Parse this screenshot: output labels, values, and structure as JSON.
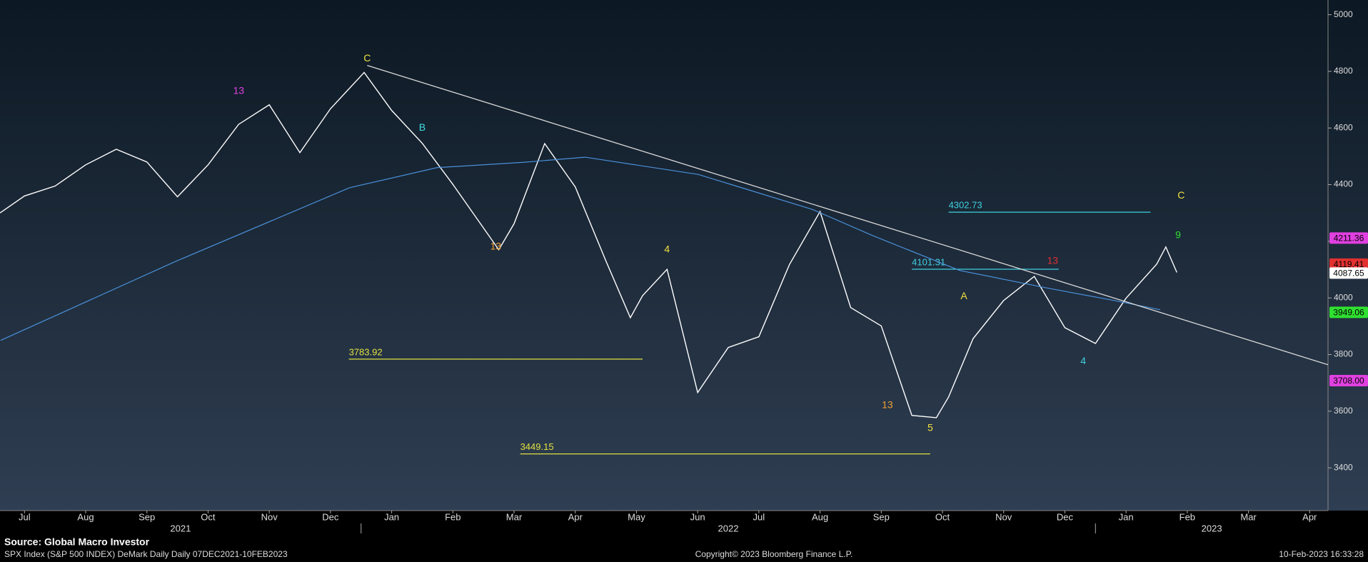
{
  "chart_data": {
    "type": "line",
    "series": [
      {
        "color": "#ffffff",
        "x": [
          0.1,
          0.5,
          1.0,
          1.5,
          2.0,
          2.5,
          3.0,
          3.5,
          4.0,
          4.5,
          5.0,
          5.5,
          6.05,
          6.5,
          7.0,
          7.5,
          8.25,
          8.5,
          9.0,
          9.5,
          10.0,
          10.4,
          10.6,
          11.0,
          11.5,
          12.0,
          12.5,
          13.0,
          13.5,
          14.0,
          14.5,
          15.0,
          15.4,
          15.6,
          16.0,
          16.5,
          17.0,
          17.5,
          18.0,
          18.5,
          19.0,
          19.15,
          19.33
        ],
        "values": [
          4300,
          4360,
          4395,
          4470,
          4525,
          4480,
          4357,
          4470,
          4613,
          4682,
          4513,
          4668,
          4796,
          4662,
          4546,
          4401,
          4170,
          4262,
          4545,
          4392,
          4131,
          3930,
          4008,
          4101,
          3666,
          3825,
          3863,
          4118,
          4305,
          3966,
          3901,
          3585,
          3577,
          3650,
          3856,
          3991,
          4076,
          3895,
          3839,
          3999,
          4119,
          4180,
          4090
        ]
      },
      {
        "color": "#4a90d9",
        "x": [
          0.11,
          2.96,
          5.81,
          7.24,
          8.66,
          9.66,
          11.51,
          13.38,
          14.36,
          15.78,
          17.21,
          18.35,
          19.06
        ],
        "values": [
          3850,
          4128,
          4389,
          4460,
          4479,
          4497,
          4436,
          4312,
          4220,
          4097,
          4035,
          3989,
          3958
        ]
      }
    ],
    "trendline": {
      "x": [
        6.1,
        21.8
      ],
      "values": [
        4821,
        3764
      ],
      "color": "#d8d8d8"
    },
    "levels": [
      {
        "value": 4302.73,
        "start": 15.6,
        "end": 18.9,
        "color": "#3fd0e0"
      },
      {
        "value": 4101.31,
        "start": 15.0,
        "end": 17.4,
        "color": "#3fd0e0"
      },
      {
        "value": 3783.92,
        "start": 5.8,
        "end": 10.6,
        "color": "#e0e040"
      },
      {
        "value": 3449.15,
        "start": 8.6,
        "end": 15.3,
        "color": "#e0e040"
      }
    ],
    "annotations": [
      {
        "text": "C",
        "x": 6.1,
        "y": 4845,
        "color": "#f0e040"
      },
      {
        "text": "13",
        "x": 4.0,
        "y": 4730,
        "color": "#e040e0"
      },
      {
        "text": "13",
        "x": 17.3,
        "y": 4130,
        "color": "#e03030"
      },
      {
        "text": "C",
        "x": 19.4,
        "y": 4360,
        "color": "#f0e040"
      },
      {
        "text": "9",
        "x": 19.35,
        "y": 4220,
        "color": "#30e030"
      },
      {
        "text": "13",
        "x": 14.6,
        "y": 3620,
        "color": "#f0a030"
      },
      {
        "text": "5",
        "x": 15.3,
        "y": 3540,
        "color": "#f0e040"
      },
      {
        "text": "B",
        "x": 7.0,
        "y": 4600,
        "color": "#40e0e0"
      },
      {
        "text": "4",
        "x": 11.0,
        "y": 4170,
        "color": "#f0e040"
      },
      {
        "text": "4",
        "x": 17.8,
        "y": 3775,
        "color": "#40d0e0"
      },
      {
        "text": "A",
        "x": 15.85,
        "y": 4005,
        "color": "#f0e040"
      },
      {
        "text": "13",
        "x": 8.2,
        "y": 4180,
        "color": "#f0a030"
      }
    ],
    "price_tags": [
      {
        "value": 4211.36,
        "color": "#e040e0"
      },
      {
        "value": 4119.41,
        "color": "#e03030"
      },
      {
        "value": 4087.65,
        "color": "#ffffff"
      },
      {
        "value": 3949.06,
        "color": "#30e030"
      },
      {
        "value": 3708,
        "label": "3708.00",
        "color": "#e040e0"
      }
    ],
    "ylim": [
      3249,
      5052
    ],
    "yticks": [
      3400,
      3600,
      3800,
      4000,
      4200,
      4400,
      4600,
      4800,
      5000
    ],
    "xlim": [
      0.1,
      21.8
    ],
    "xticks": [
      {
        "value": 0.5,
        "label": "Jul"
      },
      {
        "value": 1.5,
        "label": "Aug"
      },
      {
        "value": 2.5,
        "label": "Sep"
      },
      {
        "value": 3.5,
        "label": "Oct"
      },
      {
        "value": 4.5,
        "label": "Nov"
      },
      {
        "value": 5.5,
        "label": "Dec"
      },
      {
        "value": 6.5,
        "label": "Jan"
      },
      {
        "value": 7.5,
        "label": "Feb"
      },
      {
        "value": 8.5,
        "label": "Mar"
      },
      {
        "value": 9.5,
        "label": "Apr"
      },
      {
        "value": 10.5,
        "label": "May"
      },
      {
        "value": 11.5,
        "label": "Jun"
      },
      {
        "value": 12.5,
        "label": "Jul"
      },
      {
        "value": 13.5,
        "label": "Aug"
      },
      {
        "value": 14.5,
        "label": "Sep"
      },
      {
        "value": 15.5,
        "label": "Oct"
      },
      {
        "value": 16.5,
        "label": "Nov"
      },
      {
        "value": 17.5,
        "label": "Dec"
      },
      {
        "value": 18.5,
        "label": "Jan"
      },
      {
        "value": 19.5,
        "label": "Feb"
      },
      {
        "value": 20.5,
        "label": "Mar"
      },
      {
        "value": 21.5,
        "label": "Apr"
      }
    ],
    "year_labels": [
      {
        "value": 3.05,
        "label": "2021"
      },
      {
        "value": 12,
        "label": "2022"
      },
      {
        "value": 19.9,
        "label": "2023"
      }
    ],
    "year_breaks": [
      6,
      18
    ],
    "source": "Source: Global Macro Investor",
    "footer_left": "SPX Index (S&P 500 INDEX) DeMark Daily  Daily 07DEC2021-10FEB2023",
    "footer_center": "Copyright© 2023 Bloomberg Finance L.P.",
    "footer_right": "10-Feb-2023 16:33:28"
  }
}
